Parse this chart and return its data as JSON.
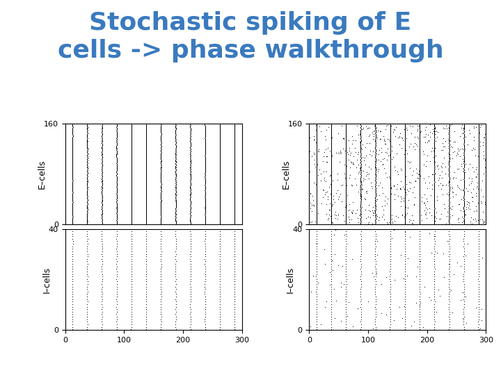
{
  "title_line1": "Stochastic spiking of E",
  "title_line2": "cells -> phase walkthrough",
  "title_color": "#3a7abf",
  "title_fontsize": 26,
  "title_fontweight": "bold",
  "bg_color": "#ffffff",
  "xlim": [
    0,
    300
  ],
  "e_ylim": [
    0,
    160
  ],
  "i_ylim": [
    0,
    40
  ],
  "e_yticks": [
    0,
    160
  ],
  "i_yticks": [
    0,
    40
  ],
  "xticks": [
    0,
    100,
    200,
    300
  ],
  "e_ylabel": "E–cells",
  "i_ylabel": "I–cells",
  "n_e_cells": 160,
  "n_i_cells": 40,
  "period": 25.0,
  "spike_color": "black",
  "spike_marker_size": 1.2
}
